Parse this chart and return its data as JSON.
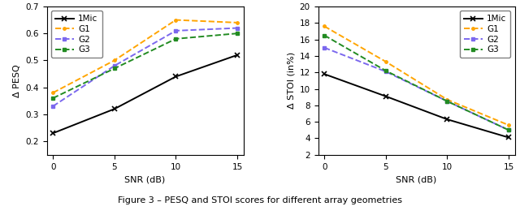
{
  "snr": [
    0,
    5,
    10,
    15
  ],
  "pesq": {
    "1Mic": [
      0.23,
      0.32,
      0.44,
      0.52
    ],
    "G1": [
      0.38,
      0.5,
      0.65,
      0.64
    ],
    "G2": [
      0.33,
      0.48,
      0.61,
      0.62
    ],
    "G3": [
      0.36,
      0.47,
      0.58,
      0.6
    ]
  },
  "stoi": {
    "1Mic": [
      11.8,
      9.1,
      6.3,
      4.1
    ],
    "G1": [
      17.6,
      13.3,
      8.7,
      5.6
    ],
    "G2": [
      15.0,
      12.1,
      8.5,
      5.0
    ],
    "G3": [
      16.5,
      12.2,
      8.5,
      5.0
    ]
  },
  "colors": {
    "1Mic": "#000000",
    "G1": "#FFA500",
    "G2": "#7B68EE",
    "G3": "#228B22"
  },
  "markers": {
    "1Mic": "x",
    "G1": ".",
    "G2": "s",
    "G3": "s"
  },
  "linestyles": {
    "1Mic": "-",
    "G1": "--",
    "G2": "--",
    "G3": "--"
  },
  "pesq_ylim": [
    0.15,
    0.7
  ],
  "pesq_yticks": [
    0.2,
    0.3,
    0.4,
    0.5,
    0.6,
    0.7
  ],
  "stoi_ylim": [
    2,
    20
  ],
  "stoi_yticks": [
    2,
    4,
    6,
    8,
    10,
    12,
    14,
    16,
    18,
    20
  ],
  "xticks": [
    0,
    5,
    10,
    15
  ],
  "xlabel": "SNR (dB)",
  "pesq_ylabel": "Δ PESQ",
  "stoi_ylabel": "Δ STOI (in%)",
  "caption": "Figure 3 – PESQ and STOI scores for different array geometries"
}
